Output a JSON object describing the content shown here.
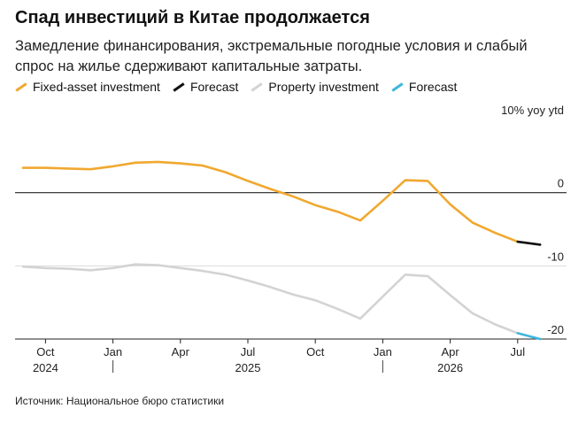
{
  "header": {
    "title": "Спад инвестиций в Китае продолжается",
    "subtitle": "Замедление финансирования, экстремальные погодные условия и слабый спрос на жилье сдерживают капитальные затраты."
  },
  "footer": {
    "source": "Источник: Национальное бюро статистики"
  },
  "chart_data": {
    "type": "line",
    "title": "Спад инвестиций в Китае продолжается",
    "ylabel": "10% yoy ytd",
    "ylim": [
      -20,
      10
    ],
    "yticks": [
      {
        "value": 10,
        "label": "10% yoy ytd"
      },
      {
        "value": 0,
        "label": "0"
      },
      {
        "value": -10,
        "label": "-10"
      },
      {
        "value": -20,
        "label": "-20"
      }
    ],
    "xlim": [
      "2024-09",
      "2026-09"
    ],
    "xticks": [
      {
        "date": "2024-10",
        "label": "Oct"
      },
      {
        "date": "2025-01",
        "label": "Jan"
      },
      {
        "date": "2025-04",
        "label": "Apr"
      },
      {
        "date": "2025-07",
        "label": "Jul"
      },
      {
        "date": "2025-10",
        "label": "Oct"
      },
      {
        "date": "2026-01",
        "label": "Jan"
      },
      {
        "date": "2026-04",
        "label": "Apr"
      },
      {
        "date": "2026-07",
        "label": "Jul"
      }
    ],
    "year_labels": [
      {
        "date": "2024-10",
        "label": "2024"
      },
      {
        "date": "2025-07",
        "label": "2025"
      },
      {
        "date": "2026-04",
        "label": "2026"
      }
    ],
    "year_separators": [
      "2025-01",
      "2026-01"
    ],
    "grid": true,
    "legend_position": "top",
    "series": [
      {
        "name": "Fixed-asset investment",
        "color": "#f0a830",
        "x": [
          "2024-09",
          "2024-10",
          "2024-11",
          "2024-12",
          "2025-01",
          "2025-02",
          "2025-03",
          "2025-04",
          "2025-05",
          "2025-06",
          "2025-07",
          "2025-08",
          "2025-09",
          "2025-10",
          "2025-11",
          "2025-12",
          "2026-01",
          "2026-02",
          "2026-03",
          "2026-04",
          "2026-05",
          "2026-06",
          "2026-07"
        ],
        "y": [
          3.4,
          3.4,
          3.3,
          3.2,
          3.6,
          4.1,
          4.2,
          4.0,
          3.7,
          2.8,
          1.6,
          0.5,
          -0.5,
          -1.7,
          -2.6,
          -3.8,
          -1.1,
          1.7,
          1.6,
          -1.6,
          -4.1,
          -5.5,
          -6.7
        ]
      },
      {
        "name": "Forecast",
        "color": "#111111",
        "x": [
          "2026-07",
          "2026-08"
        ],
        "y": [
          -6.7,
          -7.1
        ]
      },
      {
        "name": "Property investment",
        "color": "#d3d3d3",
        "x": [
          "2024-09",
          "2024-10",
          "2024-11",
          "2024-12",
          "2025-01",
          "2025-02",
          "2025-03",
          "2025-04",
          "2025-05",
          "2025-06",
          "2025-07",
          "2025-08",
          "2025-09",
          "2025-10",
          "2025-11",
          "2025-12",
          "2026-01",
          "2026-02",
          "2026-03",
          "2026-04",
          "2026-05",
          "2026-06",
          "2026-07"
        ],
        "y": [
          -10.1,
          -10.3,
          -10.4,
          -10.6,
          -10.3,
          -9.8,
          -9.9,
          -10.3,
          -10.7,
          -11.2,
          -12.0,
          -12.9,
          -13.9,
          -14.7,
          -15.9,
          -17.2,
          -14.2,
          -11.2,
          -11.4,
          -14.0,
          -16.5,
          -18.0,
          -19.2
        ]
      },
      {
        "name": "Forecast",
        "color": "#3fb6dc",
        "x": [
          "2026-07",
          "2026-08"
        ],
        "y": [
          -19.2,
          -20.0
        ]
      }
    ]
  }
}
